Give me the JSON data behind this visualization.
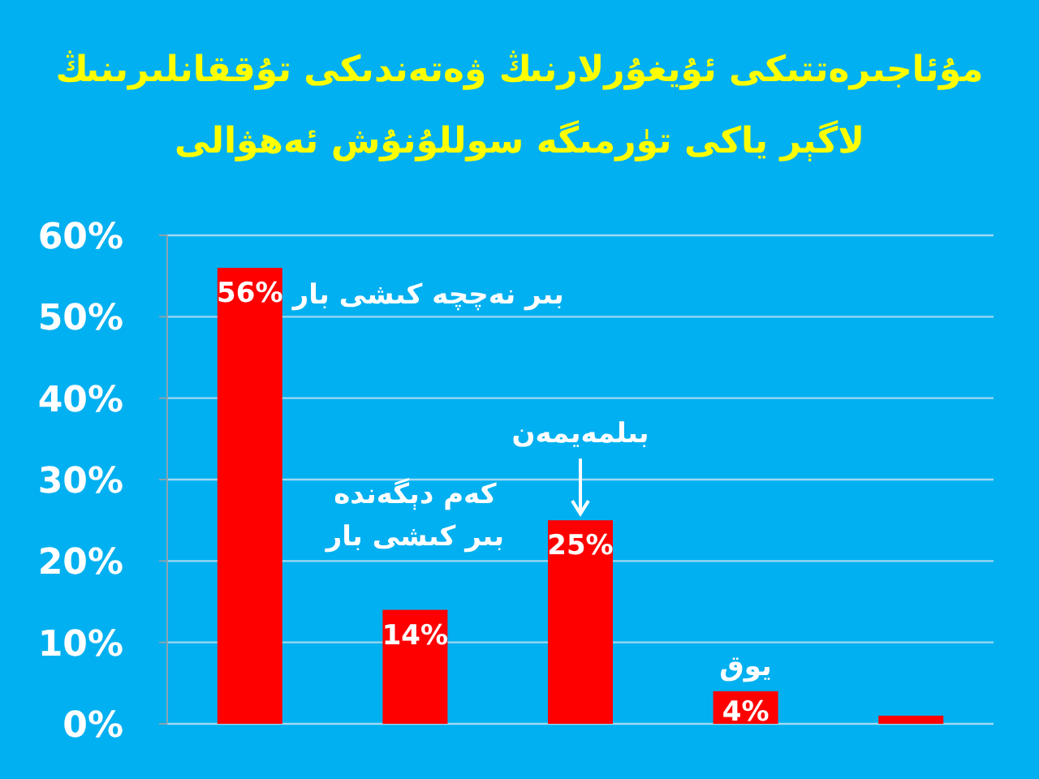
{
  "chart_data": {
    "type": "bar",
    "title": "مۇئاجىرەتتىكى ئۇيغۇرلارنىڭ ۋەتەندىكى تۇققانلىرىنىڭ لاگېر ياكى تۈرمىگە سوللۇنۇش ئەھۋالى",
    "categories": [
      null,
      null,
      null,
      null,
      null
    ],
    "values": [
      56,
      14,
      25,
      4,
      1
    ],
    "value_labels": [
      "56%",
      "14%",
      "25%",
      "4%",
      null
    ],
    "color": "#ff0000",
    "ylim": [
      0,
      60
    ],
    "yticks": [
      {
        "value": 0,
        "label": "0%"
      },
      {
        "value": 10,
        "label": "10%"
      },
      {
        "value": 20,
        "label": "20%"
      },
      {
        "value": 30,
        "label": "30%"
      },
      {
        "value": 40,
        "label": "40%"
      },
      {
        "value": 50,
        "label": "50%"
      },
      {
        "value": 60,
        "label": "60%"
      }
    ],
    "grid": "y",
    "annotations": [
      {
        "text": "بىر نەچچە كىشى بار"
      },
      {
        "text": "كەم دېگەندە بىر كىشى بار"
      },
      {
        "text": "بىلمەيمەن"
      },
      {
        "text": "يوق"
      }
    ]
  }
}
